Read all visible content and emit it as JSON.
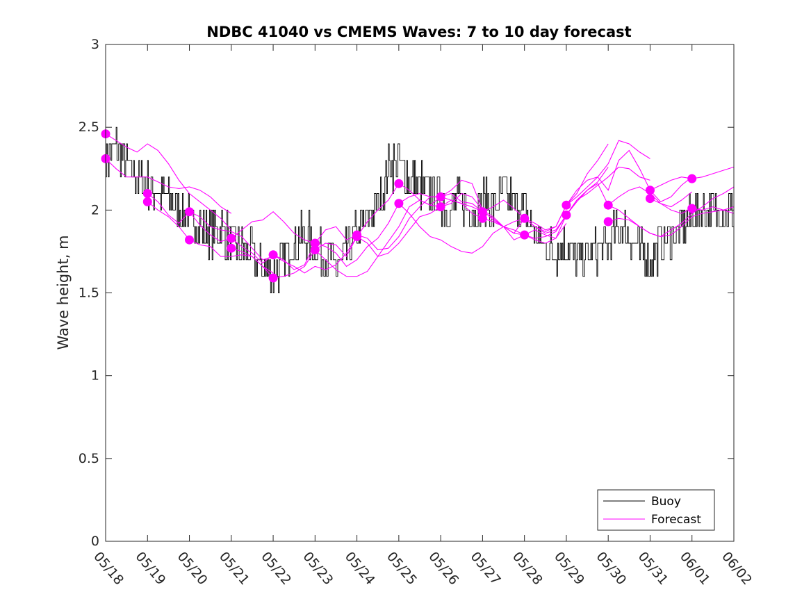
{
  "chart_data": {
    "type": "line",
    "title": "NDBC 41040 vs CMEMS Waves: 7 to 10 day forecast",
    "xlabel": "",
    "ylabel": "Wave height, m",
    "xlim": [
      "05/18",
      "06/02"
    ],
    "ylim": [
      0,
      3
    ],
    "x_tick_labels": [
      "05/18",
      "05/19",
      "05/20",
      "05/21",
      "05/22",
      "05/23",
      "05/24",
      "05/25",
      "05/26",
      "05/27",
      "05/28",
      "05/29",
      "05/30",
      "05/31",
      "06/01",
      "06/02"
    ],
    "y_tick_labels": [
      "0",
      "0.5",
      "1",
      "1.5",
      "2",
      "2.5",
      "3"
    ],
    "y_ticks": [
      0,
      0.5,
      1,
      1.5,
      2,
      2.5,
      3
    ],
    "grid": false,
    "legend": {
      "position": "bottom-right",
      "entries": [
        "Buoy",
        "Forecast"
      ]
    },
    "colors": {
      "buoy": "#000000",
      "forecast": "#ff00ff"
    },
    "buoy": {
      "name": "Buoy",
      "x_day": [
        0,
        0.25,
        0.5,
        0.75,
        1.0,
        1.25,
        1.5,
        1.75,
        2.0,
        2.25,
        2.5,
        2.75,
        3.0,
        3.25,
        3.5,
        3.75,
        4.0,
        4.25,
        4.5,
        4.75,
        5.0,
        5.25,
        5.5,
        5.75,
        6.0,
        6.25,
        6.5,
        6.75,
        7.0,
        7.25,
        7.5,
        7.75,
        8.0,
        8.25,
        8.5,
        8.75,
        9.0,
        9.25,
        9.5,
        9.75,
        10.0,
        10.25,
        10.5,
        10.75,
        11.0,
        11.25,
        11.5,
        11.75,
        12.0,
        12.25,
        12.5,
        12.75,
        13.0,
        13.25,
        13.5,
        13.75,
        14.0,
        14.25,
        14.5,
        14.75,
        15.0
      ],
      "y": [
        2.3,
        2.4,
        2.25,
        2.2,
        2.15,
        2.1,
        2.05,
        2.0,
        1.95,
        1.9,
        1.85,
        1.9,
        1.8,
        1.75,
        1.72,
        1.65,
        1.62,
        1.7,
        1.8,
        1.85,
        1.8,
        1.72,
        1.65,
        1.75,
        1.85,
        1.95,
        2.05,
        2.25,
        2.3,
        2.2,
        2.15,
        2.1,
        2.05,
        2.0,
        2.05,
        2.0,
        2.05,
        2.0,
        2.1,
        2.05,
        2.0,
        1.85,
        1.8,
        1.75,
        1.8,
        1.7,
        1.72,
        1.75,
        1.8,
        1.9,
        1.85,
        1.75,
        1.7,
        1.8,
        1.85,
        1.9,
        1.95,
        2.0,
        2.0,
        2.0,
        2.0
      ]
    },
    "forecast": {
      "name": "Forecast",
      "runs": [
        {
          "x_day": [
            0,
            0.25,
            0.5,
            0.75,
            1.0,
            1.25,
            1.5,
            1.75,
            2.0,
            2.25,
            2.5,
            2.75,
            3.0
          ],
          "y": [
            2.46,
            2.42,
            2.38,
            2.35,
            2.4,
            2.36,
            2.28,
            2.18,
            2.1,
            2.05,
            2.0,
            1.95,
            1.88
          ]
        },
        {
          "x_day": [
            0,
            0.25,
            0.5,
            0.75,
            1.0,
            1.25,
            1.5,
            1.75,
            2.0,
            2.25,
            2.5,
            2.75,
            3.0
          ],
          "y": [
            2.31,
            2.25,
            2.2,
            2.2,
            2.2,
            2.17,
            2.14,
            2.13,
            2.14,
            2.12,
            2.08,
            2.02,
            1.98
          ]
        },
        {
          "x_day": [
            1.0,
            1.25,
            1.5,
            1.75,
            2.0,
            2.25,
            2.5,
            2.75,
            3.0,
            3.25,
            3.5,
            3.75,
            4.0
          ],
          "y": [
            2.1,
            2.05,
            1.97,
            1.92,
            1.99,
            1.96,
            1.9,
            1.88,
            1.87,
            1.84,
            1.77,
            1.7,
            1.72
          ]
        },
        {
          "x_day": [
            1.0,
            1.25,
            1.5,
            1.75,
            2.0,
            2.25,
            2.5,
            2.75,
            3.0,
            3.25,
            3.5,
            3.75,
            4.0
          ],
          "y": [
            2.05,
            2.0,
            1.96,
            1.9,
            1.82,
            1.79,
            1.78,
            1.72,
            1.72,
            1.73,
            1.72,
            1.66,
            1.62
          ]
        },
        {
          "x_day": [
            2.0,
            2.25,
            2.5,
            2.75,
            3.0,
            3.25,
            3.5,
            3.75,
            4.0,
            4.25,
            4.5,
            4.75,
            5.0
          ],
          "y": [
            1.99,
            1.91,
            1.85,
            1.81,
            1.83,
            1.88,
            1.93,
            1.94,
            1.99,
            1.93,
            1.86,
            1.82,
            1.8
          ]
        },
        {
          "x_day": [
            3.0,
            3.25,
            3.5,
            3.75,
            4.0,
            4.25,
            4.5,
            4.75,
            5.0,
            5.25,
            5.5,
            5.75,
            6.0
          ],
          "y": [
            1.83,
            1.78,
            1.74,
            1.68,
            1.73,
            1.7,
            1.64,
            1.67,
            1.8,
            1.88,
            1.9,
            1.82,
            1.85
          ]
        },
        {
          "x_day": [
            3.0,
            3.25,
            3.5,
            3.75,
            4.0,
            4.25,
            4.5,
            4.75,
            5.0,
            5.25,
            5.5,
            5.75,
            6.0
          ],
          "y": [
            1.77,
            1.75,
            1.72,
            1.66,
            1.59,
            1.6,
            1.62,
            1.66,
            1.76,
            1.8,
            1.79,
            1.72,
            1.84
          ]
        },
        {
          "x_day": [
            4.0,
            4.25,
            4.5,
            4.75,
            5.0,
            5.25,
            5.5,
            5.75,
            6.0,
            6.25,
            6.5,
            6.75,
            7.0
          ],
          "y": [
            1.73,
            1.69,
            1.66,
            1.62,
            1.66,
            1.64,
            1.67,
            1.74,
            1.84,
            1.93,
            2.0,
            2.06,
            2.16
          ]
        },
        {
          "x_day": [
            5.0,
            5.25,
            5.5,
            5.75,
            6.0,
            6.25,
            6.5,
            6.75,
            7.0,
            7.25,
            7.5,
            7.75,
            8.0
          ],
          "y": [
            1.8,
            1.78,
            1.74,
            1.66,
            1.7,
            1.78,
            1.83,
            1.92,
            2.04,
            2.08,
            2.1,
            2.08,
            2.08
          ]
        },
        {
          "x_day": [
            5.0,
            5.25,
            5.5,
            5.75,
            6.0,
            6.25,
            6.5,
            6.75,
            7.0,
            7.25,
            7.5,
            7.75,
            8.0
          ],
          "y": [
            1.76,
            1.7,
            1.64,
            1.6,
            1.6,
            1.63,
            1.72,
            1.81,
            1.9,
            2.02,
            2.06,
            2.03,
            2.02
          ]
        },
        {
          "x_day": [
            6.0,
            6.25,
            6.5,
            6.75,
            7.0,
            7.25,
            7.5,
            7.75,
            8.0,
            8.25,
            8.5,
            8.75,
            9.0
          ],
          "y": [
            1.85,
            1.83,
            1.76,
            1.77,
            1.84,
            1.95,
            2.02,
            2.08,
            2.08,
            2.1,
            2.05,
            2.04,
            1.99
          ]
        },
        {
          "x_day": [
            6.0,
            6.25,
            6.5,
            6.75,
            7.0,
            7.25,
            7.5,
            7.75,
            8.0,
            8.25,
            8.5,
            8.75,
            9.0
          ],
          "y": [
            1.84,
            1.8,
            1.72,
            1.74,
            1.8,
            1.88,
            1.96,
            1.98,
            2.02,
            2.06,
            2.04,
            1.98,
            1.95
          ]
        },
        {
          "x_day": [
            7.0,
            7.25,
            7.5,
            7.75,
            8.0,
            8.25,
            8.5,
            8.75,
            9.0,
            9.25,
            9.5,
            9.75,
            10.0
          ],
          "y": [
            2.16,
            2.12,
            2.06,
            2.03,
            2.08,
            2.12,
            2.18,
            2.16,
            2.0,
            1.94,
            1.9,
            1.93,
            1.95
          ]
        },
        {
          "x_day": [
            7.0,
            7.25,
            7.5,
            7.75,
            8.0,
            8.25,
            8.5,
            8.75,
            9.0,
            9.25,
            9.5,
            9.75,
            10.0
          ],
          "y": [
            2.04,
            1.98,
            1.9,
            1.84,
            1.82,
            1.78,
            1.75,
            1.74,
            1.78,
            1.86,
            1.9,
            1.88,
            1.85
          ]
        },
        {
          "x_day": [
            8.0,
            8.25,
            8.5,
            8.75,
            9.0,
            9.25,
            9.5,
            9.75,
            10.0,
            10.25,
            10.5,
            10.75,
            11.0
          ],
          "y": [
            2.08,
            2.06,
            2.04,
            2.02,
            1.99,
            1.95,
            1.9,
            1.86,
            1.95,
            1.9,
            1.86,
            1.88,
            1.97
          ]
        },
        {
          "x_day": [
            8.0,
            8.25,
            8.5,
            8.75,
            9.0,
            9.25,
            9.5,
            9.75,
            10.0,
            10.25,
            10.5,
            10.75,
            11.0
          ],
          "y": [
            2.02,
            2.04,
            2.1,
            2.08,
            2.0,
            1.96,
            1.9,
            1.82,
            1.85,
            1.88,
            1.85,
            1.83,
            1.92
          ]
        },
        {
          "x_day": [
            9.0,
            9.25,
            9.5,
            9.75,
            10.0,
            10.25,
            10.5,
            10.75,
            11.0,
            11.25,
            11.5,
            11.75,
            12.0
          ],
          "y": [
            1.99,
            2.02,
            2.06,
            2.01,
            1.95,
            1.92,
            1.88,
            1.9,
            2.03,
            2.1,
            2.22,
            2.3,
            2.4
          ]
        },
        {
          "x_day": [
            9.0,
            9.25,
            9.5,
            9.75,
            10.0,
            10.25,
            10.5,
            10.75,
            11.0,
            11.25,
            11.5,
            11.75,
            12.0
          ],
          "y": [
            1.95,
            1.93,
            1.9,
            1.86,
            1.85,
            1.82,
            1.8,
            1.83,
            1.97,
            2.06,
            2.12,
            2.17,
            2.26
          ]
        },
        {
          "x_day": [
            10.0,
            10.25,
            10.5,
            10.75,
            11.0,
            11.25,
            11.5,
            11.75,
            12.0,
            12.25,
            12.5,
            12.75,
            13.0
          ],
          "y": [
            1.95,
            1.9,
            1.87,
            1.9,
            2.03,
            2.12,
            2.18,
            2.2,
            2.28,
            2.42,
            2.4,
            2.35,
            2.31
          ]
        },
        {
          "x_day": [
            10.0,
            10.25,
            10.5,
            10.75,
            11.0,
            11.25,
            11.5,
            11.75,
            12.0,
            12.25,
            12.5,
            12.75,
            13.0
          ],
          "y": [
            1.85,
            1.83,
            1.84,
            1.87,
            1.97,
            2.06,
            2.1,
            2.15,
            2.2,
            2.26,
            2.25,
            2.2,
            2.18
          ]
        },
        {
          "x_day": [
            11.0,
            11.25,
            11.5,
            11.75,
            12.0,
            12.25,
            12.5,
            12.75,
            13.0,
            13.25,
            13.5,
            13.75,
            14.0
          ],
          "y": [
            2.03,
            2.08,
            2.14,
            2.2,
            2.12,
            2.3,
            2.36,
            2.25,
            2.12,
            2.05,
            2.08,
            2.15,
            2.2
          ]
        },
        {
          "x_day": [
            11.0,
            11.25,
            11.5,
            11.75,
            12.0,
            12.25,
            12.5,
            12.75,
            13.0,
            13.25,
            13.5,
            13.75,
            14.0
          ],
          "y": [
            1.97,
            2.05,
            2.12,
            2.16,
            2.03,
            2.08,
            2.12,
            2.14,
            2.1,
            2.04,
            2.02,
            2.06,
            2.11
          ]
        },
        {
          "x_day": [
            12.0,
            12.25,
            12.5,
            12.75,
            13.0,
            13.25,
            13.5,
            13.75,
            14.0,
            14.25,
            14.5,
            14.75,
            15.0
          ],
          "y": [
            2.03,
            2.0,
            1.95,
            1.9,
            1.86,
            1.84,
            1.88,
            1.92,
            1.98,
            2.02,
            2.07,
            2.1,
            2.14
          ]
        },
        {
          "x_day": [
            12.0,
            12.25,
            12.5,
            12.75,
            13.0,
            13.25,
            13.5,
            13.75,
            14.0,
            14.25,
            14.5,
            14.75,
            15.0
          ],
          "y": [
            1.93,
            1.95,
            1.94,
            1.9,
            1.86,
            1.84,
            1.85,
            1.9,
            1.96,
            1.98,
            1.99,
            2.0,
            2.02
          ]
        },
        {
          "x_day": [
            13.0,
            13.25,
            13.5,
            13.75,
            14.0,
            14.25,
            14.5,
            14.75,
            15.0
          ],
          "y": [
            2.12,
            2.15,
            2.18,
            2.2,
            2.19,
            2.2,
            2.22,
            2.24,
            2.26
          ]
        },
        {
          "x_day": [
            13.0,
            13.25,
            13.5,
            13.75,
            14.0,
            14.25,
            14.5,
            14.75,
            15.0
          ],
          "y": [
            2.07,
            2.04,
            2.0,
            1.98,
            2.01,
            2.0,
            2.02,
            2.0,
            1.98
          ]
        }
      ],
      "markers": {
        "x_day": [
          0,
          0,
          1,
          1,
          2,
          2,
          3,
          3,
          4,
          4,
          5,
          5,
          6,
          6,
          7,
          7,
          8,
          8,
          9,
          9,
          10,
          10,
          11,
          11,
          12,
          12,
          13,
          13,
          14,
          14
        ],
        "y": [
          2.46,
          2.31,
          2.1,
          2.05,
          1.99,
          1.82,
          1.83,
          1.77,
          1.73,
          1.59,
          1.8,
          1.76,
          1.85,
          1.84,
          2.16,
          2.04,
          2.08,
          2.02,
          1.99,
          1.95,
          1.95,
          1.85,
          2.03,
          1.97,
          2.03,
          1.93,
          2.12,
          2.07,
          2.19,
          2.01
        ]
      }
    }
  }
}
